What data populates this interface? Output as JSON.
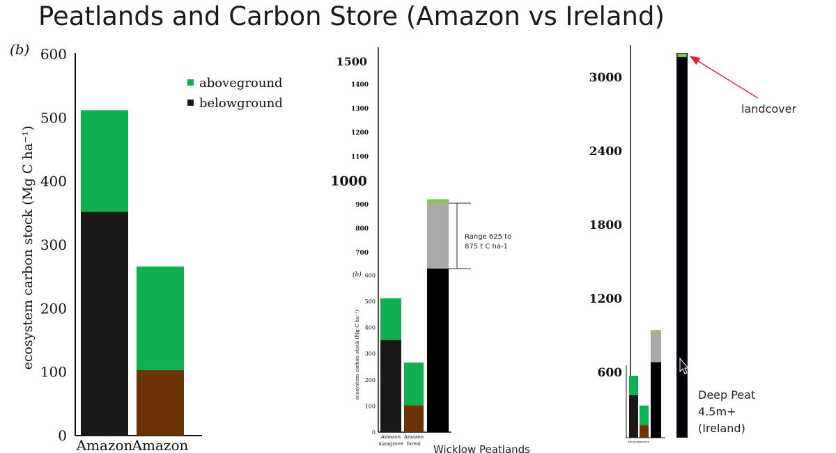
{
  "slide": {
    "title": "Peatlands and Carbon Store (Amazon vs Ireland)"
  },
  "colors": {
    "aboveground": "#10b050",
    "belowground": "#1b1818",
    "soil": "#6b3306",
    "range": "#a9a9a9",
    "black": "#000000",
    "arrow": "#e0282c",
    "landcover": "#8bc34a"
  },
  "chart_data": [
    {
      "type": "bar",
      "panel_label": "(b)",
      "ylabel": "ecosystem carbon stock (Mg C ha⁻¹)",
      "ylim": [
        0,
        600
      ],
      "yticks": [
        0,
        100,
        200,
        300,
        400,
        500,
        600
      ],
      "categories": [
        "Amazon",
        "Amazon"
      ],
      "legend": [
        {
          "name": "aboveground",
          "color": "#10b050"
        },
        {
          "name": "belowground",
          "color": "#1b1818"
        }
      ],
      "legend_position": "top-right",
      "bars": [
        {
          "segments": [
            {
              "from": 0,
              "to": 352,
              "color": "#1b1818"
            },
            {
              "from": 352,
              "to": 512,
              "color": "#10b050"
            }
          ]
        },
        {
          "segments": [
            {
              "from": 0,
              "to": 103,
              "color": "#6b3306"
            },
            {
              "from": 103,
              "to": 266,
              "color": "#10b050"
            }
          ]
        }
      ]
    },
    {
      "type": "bar",
      "panel_label": "(b)",
      "ylabel": "ecosystem carbon stock (Mg C ha⁻¹)",
      "upper_ticks": [
        {
          "v": 700,
          "label": "700"
        },
        {
          "v": 800,
          "label": "800"
        },
        {
          "v": 900,
          "label": "900"
        },
        {
          "v": 1000,
          "label": "1000",
          "big": true
        },
        {
          "v": 1100,
          "label": "1100"
        },
        {
          "v": 1200,
          "label": "1200"
        },
        {
          "v": 1300,
          "label": "1300"
        },
        {
          "v": 1400,
          "label": "1400"
        },
        {
          "v": 1500,
          "label": "1500",
          "big": true
        }
      ],
      "inset_ticks": [
        0,
        100,
        200,
        300,
        400,
        500,
        600
      ],
      "categories": [
        "Amazon mangrove",
        "Amazon forest"
      ],
      "caption": "Wicklow Peatlands",
      "range_annotation": {
        "text_line1": "Range 625 to",
        "text_line2": "875 t C ha-1",
        "from": 625,
        "to": 875
      },
      "bars": [
        {
          "segments": [
            {
              "from": 0,
              "to": 352,
              "color": "#1b1818"
            },
            {
              "from": 352,
              "to": 512,
              "color": "#10b050"
            }
          ]
        },
        {
          "segments": [
            {
              "from": 0,
              "to": 103,
              "color": "#6b3306"
            },
            {
              "from": 103,
              "to": 266,
              "color": "#10b050"
            }
          ]
        },
        {
          "segments": [
            {
              "from": 0,
              "to": 625,
              "color": "#000000"
            },
            {
              "from": 625,
              "to": 875,
              "color": "#a9a9a9"
            },
            {
              "from": 875,
              "to": 890,
              "color": "#8bc34a"
            }
          ]
        }
      ]
    },
    {
      "type": "bar",
      "yticks": [
        600,
        1200,
        1800,
        2400,
        3000
      ],
      "inset_categories": [
        "Amazon",
        "Amazon"
      ],
      "caption": [
        "Deep Peat",
        "4.5m+",
        "(Ireland)"
      ],
      "annotation": "landcover",
      "bars": [
        {
          "segments": [
            {
              "from": 0,
              "to": 352,
              "color": "#1b1818"
            },
            {
              "from": 352,
              "to": 512,
              "color": "#10b050"
            }
          ]
        },
        {
          "segments": [
            {
              "from": 0,
              "to": 103,
              "color": "#6b3306"
            },
            {
              "from": 103,
              "to": 266,
              "color": "#10b050"
            }
          ]
        },
        {
          "segments": [
            {
              "from": 0,
              "to": 625,
              "color": "#000000"
            },
            {
              "from": 625,
              "to": 875,
              "color": "#a9a9a9"
            },
            {
              "from": 875,
              "to": 890,
              "color": "#8bc34a"
            }
          ]
        },
        {
          "segments": [
            {
              "from": 0,
              "to": 3150,
              "color": "#000000"
            },
            {
              "from": 3150,
              "to": 3180,
              "color": "#8bc34a"
            }
          ]
        }
      ]
    }
  ]
}
